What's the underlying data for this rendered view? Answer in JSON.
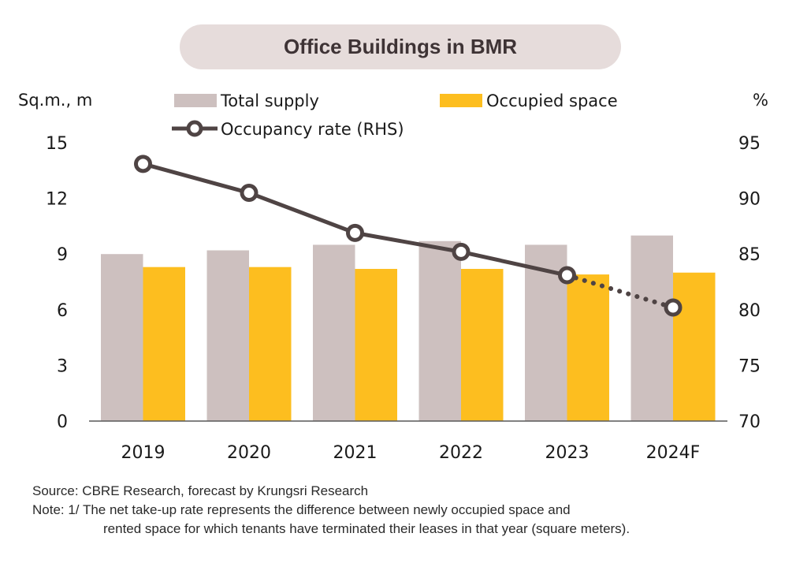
{
  "title": "Office Buildings in BMR",
  "chart_data": {
    "type": "bar",
    "title": "Office Buildings in BMR",
    "categories": [
      "2019",
      "2020",
      "2021",
      "2022",
      "2023",
      "2024F"
    ],
    "series": [
      {
        "name": "Total supply",
        "type": "bar",
        "axis": "left",
        "color": "#cdc0bf",
        "values": [
          9.0,
          9.2,
          9.5,
          9.7,
          9.5,
          10.0
        ]
      },
      {
        "name": "Occupied space",
        "type": "bar",
        "axis": "left",
        "color": "#fdbe1f",
        "values": [
          8.3,
          8.3,
          8.2,
          8.2,
          7.9,
          8.0
        ]
      },
      {
        "name": "Occupancy rate (RHS)",
        "type": "line",
        "axis": "right",
        "color": "#4f4444",
        "values": [
          93.1,
          90.5,
          86.9,
          85.2,
          83.1,
          80.2
        ],
        "forecast_from_index": 4
      }
    ],
    "ylabel": "Sq.m., m",
    "ylabel_right": "%",
    "ylim": [
      0,
      15
    ],
    "yticks": [
      "0",
      "3",
      "6",
      "9",
      "12",
      "15"
    ],
    "ylim_right": [
      70,
      95
    ],
    "yticks_right": [
      "70",
      "75",
      "80",
      "85",
      "90",
      "95"
    ],
    "grid": false,
    "legend_position": "top"
  },
  "legend": {
    "total_supply": "Total supply",
    "occupied_space": "Occupied space",
    "occupancy_rate": "Occupancy rate (RHS)"
  },
  "footer": {
    "source": "Source: CBRE Research, forecast by Krungsri Research",
    "note_line1": "Note: 1/  The net take-up rate represents the difference between newly occupied space and",
    "note_line2": "rented space for which tenants have terminated their leases in that year (square meters)."
  }
}
